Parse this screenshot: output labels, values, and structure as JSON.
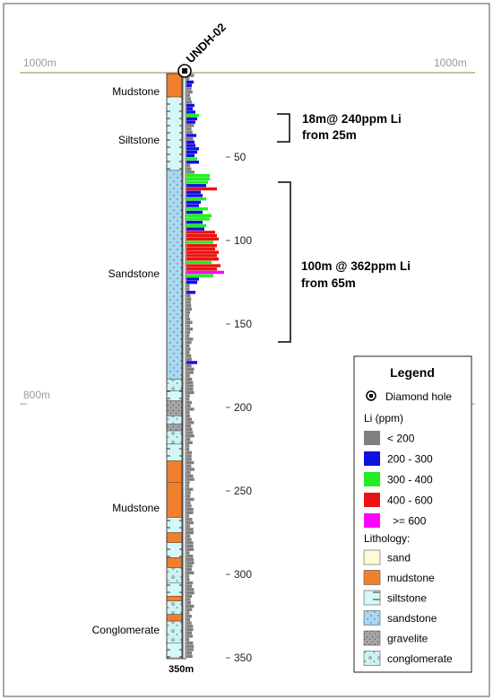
{
  "hole": {
    "name": "UNDH-02",
    "depth_label": "350m"
  },
  "elevation": {
    "surface": "1000m",
    "surface_right": "1000m",
    "mid": "800m"
  },
  "depth_ticks": [
    "50",
    "100",
    "150",
    "200",
    "250",
    "300",
    "350"
  ],
  "lithology_labels": [
    "Mudstone",
    "Siltstone",
    "Sandstone",
    "Mudstone",
    "Conglomerate"
  ],
  "intervals": [
    {
      "line1": "18m@ 240ppm Li",
      "line2": "from 25m"
    },
    {
      "line1": "100m @ 362ppm Li",
      "line2": "from 65m"
    }
  ],
  "legend": {
    "title": "Legend",
    "diamond_hole": "Diamond hole",
    "li_title": "Li (ppm)",
    "li_items": [
      {
        "label": "< 200",
        "color": "#808080"
      },
      {
        "label": "200 - 300",
        "color": "#1010e0"
      },
      {
        "label": "300 - 400",
        "color": "#22ee22"
      },
      {
        "label": "400 - 600",
        "color": "#ee1111"
      },
      {
        "label": ">= 600",
        "color": "#ff00ff"
      }
    ],
    "lith_title": "Lithology:",
    "lith_items": [
      {
        "label": "sand",
        "pattern": "sand",
        "color": "#fffbd5"
      },
      {
        "label": "mudstone",
        "pattern": "mudstone",
        "color": "#f07f2e"
      },
      {
        "label": "siltstone",
        "pattern": "siltstone",
        "color": "#d5f7f7"
      },
      {
        "label": "sandstone",
        "pattern": "sandstone",
        "color": "#a9d8f2"
      },
      {
        "label": "gravelite",
        "pattern": "gravelite",
        "color": "#a6a6a6"
      },
      {
        "label": "conglomerate",
        "pattern": "conglomerate",
        "color": "#ccf3f3"
      }
    ]
  }
}
